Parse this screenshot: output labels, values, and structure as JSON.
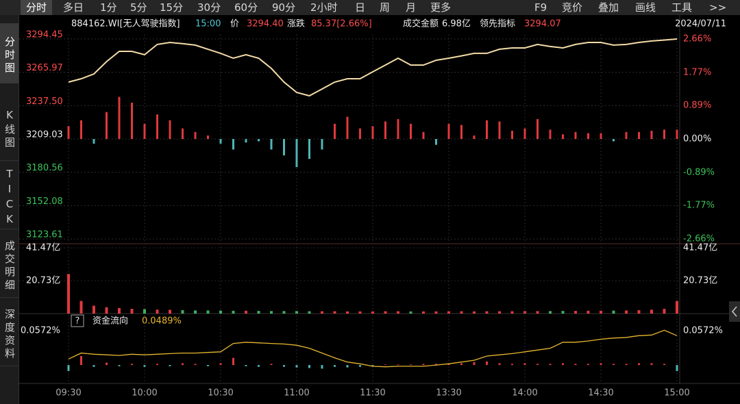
{
  "toolbar": {
    "left": [
      "分时",
      "多日",
      "1分",
      "5分",
      "15分",
      "30分",
      "60分",
      "90分",
      "2小时",
      "日",
      "周",
      "月",
      "更多"
    ],
    "right": [
      "F9",
      "竞价",
      "叠加",
      "画线",
      "工具",
      ">>"
    ],
    "selected": 0
  },
  "sidebar": {
    "items": [
      "分时图",
      "K线图",
      "TICK",
      "成交明细",
      "深度资料"
    ],
    "selected": 0
  },
  "quote": {
    "code": "884162.WI[无人驾驶指数]",
    "time": "15:00",
    "price_label": "价",
    "price": "3294.40",
    "change_label": "涨跌",
    "change": "85.37[2.66%]",
    "amount_label": "成交金额",
    "amount": "6.98亿",
    "lead_label": "领先指标",
    "lead": "3294.07",
    "date": "2024/07/11"
  },
  "chart_data": [
    {
      "type": "line",
      "x": [
        0,
        5,
        10,
        15,
        20,
        25,
        30,
        35,
        40,
        45,
        50,
        55,
        60,
        65,
        70,
        75,
        80,
        85,
        90,
        95,
        100,
        105,
        110,
        115,
        120,
        125,
        130,
        135,
        140,
        145,
        150,
        155,
        160,
        165,
        170,
        175,
        180,
        185,
        190,
        195,
        200,
        205,
        210,
        215,
        220,
        225,
        230,
        235,
        240
      ],
      "xlim": [
        0,
        240
      ],
      "values": [
        3257.6,
        3260.5,
        3264.6,
        3275.1,
        3283.9,
        3283.9,
        3281,
        3289.8,
        3291.5,
        3290.4,
        3289.2,
        3285.7,
        3282.2,
        3278,
        3281,
        3278,
        3269.3,
        3257.6,
        3248.8,
        3245.9,
        3251.7,
        3257.6,
        3260.5,
        3260.5,
        3266.4,
        3272.2,
        3278,
        3272.2,
        3272.2,
        3276.3,
        3278,
        3280,
        3282.2,
        3282.2,
        3285.7,
        3286.8,
        3286.8,
        3289.8,
        3288,
        3286.8,
        3289.8,
        3291.5,
        3291.5,
        3289.2,
        3289.8,
        3291.5,
        3292.7,
        3293.5,
        3294.4
      ],
      "color": "#f3dca8",
      "bars": {
        "values": [
          3220,
          3225,
          3205,
          3232,
          3245,
          3240,
          3222,
          3230,
          3225,
          3218,
          3215,
          3212,
          3205,
          3200,
          3206,
          3207,
          3200,
          3195,
          3185,
          3192,
          3200,
          3222,
          3228,
          3218,
          3220,
          3224,
          3226,
          3222,
          3215,
          3204,
          3222,
          3221,
          3212,
          3225,
          3224,
          3216,
          3218,
          3226,
          3217,
          3213,
          3215,
          3214,
          3214,
          3207,
          3215,
          3215,
          3216,
          3217,
          3217
        ],
        "up_color": "#e0393e",
        "down_color": "#4fb6b8"
      },
      "ylim": [
        3119.5,
        3298.5
      ],
      "yticks": [
        3294.45,
        3265.97,
        {
          "value": 3237.5,
          "label": "3237.50"
        },
        3209.03,
        3180.56,
        3152.08,
        3123.61
      ],
      "y2lim": [
        -2.79,
        2.79
      ],
      "y2ticks": [
        {
          "value": 2.66,
          "label": "2.66%"
        },
        {
          "value": 1.77,
          "label": "1.77%"
        },
        {
          "value": 0.89,
          "label": "0.89%"
        },
        {
          "value": 0,
          "label": "0.00%"
        },
        {
          "value": -0.89,
          "label": "-0.89%"
        },
        {
          "value": -1.77,
          "label": "-1.77%"
        },
        {
          "value": -2.66,
          "label": "-2.66%"
        }
      ],
      "grid": true
    },
    {
      "type": "bar",
      "x": [
        0,
        5,
        10,
        15,
        20,
        25,
        30,
        35,
        40,
        45,
        50,
        55,
        60,
        65,
        70,
        75,
        80,
        85,
        90,
        95,
        100,
        105,
        110,
        115,
        120,
        125,
        130,
        135,
        140,
        145,
        150,
        155,
        160,
        165,
        170,
        175,
        180,
        185,
        190,
        195,
        200,
        205,
        210,
        215,
        220,
        225,
        230,
        235,
        240
      ],
      "xlim": [
        0,
        240
      ],
      "values": [
        25,
        8,
        5,
        4,
        3.5,
        3,
        2.8,
        2.5,
        2.4,
        2.2,
        2,
        2,
        1.9,
        1.8,
        1.8,
        1.7,
        1.6,
        1.6,
        1.6,
        1.5,
        1.5,
        1.5,
        1.4,
        1.4,
        1.4,
        1.5,
        1.5,
        1.4,
        1.4,
        1.4,
        1.5,
        1.5,
        1.4,
        1.5,
        1.5,
        1.5,
        1.6,
        1.6,
        1.6,
        1.7,
        1.7,
        1.8,
        1.8,
        1.9,
        2,
        2.2,
        2.5,
        3,
        8
      ],
      "up_color": "#e0393e",
      "down_color": "#3fae5f",
      "ylim": [
        0,
        44.06
      ],
      "yticks": [
        {
          "value": 41.47,
          "label": "41.47亿"
        },
        {
          "value": 20.73,
          "label": "20.73亿"
        }
      ]
    },
    {
      "type": "line",
      "title": "资金流向",
      "help": "?",
      "current_label": "0.0489%",
      "x": [
        0,
        5,
        10,
        15,
        20,
        25,
        30,
        35,
        40,
        45,
        50,
        55,
        60,
        65,
        70,
        75,
        80,
        85,
        90,
        95,
        100,
        105,
        110,
        115,
        120,
        125,
        130,
        135,
        140,
        145,
        150,
        155,
        160,
        165,
        170,
        175,
        180,
        185,
        190,
        195,
        200,
        205,
        210,
        215,
        220,
        225,
        230,
        235,
        240
      ],
      "xlim": [
        0,
        240
      ],
      "values": [
        0.01,
        0.02,
        0.018,
        0.017,
        0.016,
        0.018,
        0.017,
        0.018,
        0.019,
        0.02,
        0.02,
        0.021,
        0.022,
        0.036,
        0.038,
        0.037,
        0.036,
        0.035,
        0.033,
        0.028,
        0.02,
        0.012,
        0.005,
        0.002,
        -0.002,
        -0.003,
        -0.002,
        -0.002,
        -0.002,
        0,
        0.002,
        0.005,
        0.008,
        0.015,
        0.017,
        0.019,
        0.022,
        0.025,
        0.028,
        0.038,
        0.038,
        0.04,
        0.043,
        0.045,
        0.046,
        0.049,
        0.05,
        0.058,
        0.0489
      ],
      "color": "#e8b830",
      "bars": {
        "values": [
          -0.01,
          0.015,
          -0.003,
          0.004,
          -0.002,
          0.002,
          -0.003,
          0.002,
          -0.002,
          0.003,
          0.002,
          -0.002,
          0.003,
          0.012,
          -0.002,
          -0.003,
          0.002,
          -0.003,
          -0.004,
          -0.005,
          -0.006,
          -0.003,
          -0.004,
          -0.003,
          -0.002,
          0.001,
          0.001,
          0.001,
          0.002,
          0.002,
          0.003,
          0.003,
          0.005,
          0.006,
          0.003,
          0.002,
          0.003,
          0.002,
          0.002,
          0.003,
          0.002,
          0.002,
          0.003,
          0.002,
          0.002,
          0.003,
          0.003,
          0.002,
          -0.01
        ],
        "up_color": "#e0393e",
        "down_color": "#4fb6b8"
      },
      "ylim": [
        -0.017,
        0.072
      ],
      "yticks": [
        {
          "value": 0.0572,
          "label": "0.0572%"
        }
      ],
      "xticks": [
        {
          "value": 0,
          "label": "09:30"
        },
        {
          "value": 30,
          "label": "10:00"
        },
        {
          "value": 60,
          "label": "10:30"
        },
        {
          "value": 90,
          "label": "11:00"
        },
        {
          "value": 120,
          "label": "11:30"
        },
        {
          "value": 150,
          "label": "13:30"
        },
        {
          "value": 180,
          "label": "14:00"
        },
        {
          "value": 210,
          "label": "14:30"
        },
        {
          "value": 240,
          "label": "15:00"
        }
      ]
    }
  ]
}
